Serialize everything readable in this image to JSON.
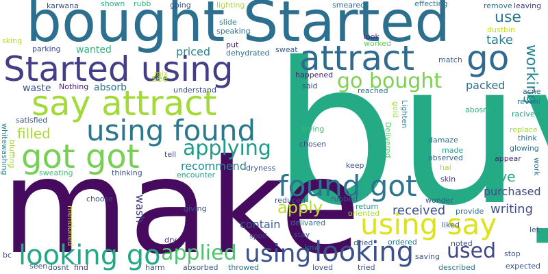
{
  "words": [
    {
      "text": "buy",
      "color": "#24aa84"
    },
    {
      "text": "make",
      "color": "#460b5e"
    },
    {
      "text": "bought Started",
      "color": "#2d6f8e"
    },
    {
      "text": "Started using",
      "color": "#433e85"
    },
    {
      "text": "say attract",
      "color": "#a2da37"
    },
    {
      "text": "attract",
      "color": "#2f6b8e"
    },
    {
      "text": "go",
      "color": "#2f6b8e"
    },
    {
      "text": "using found",
      "color": "#2a788e"
    },
    {
      "text": "got got",
      "color": "#75d054"
    },
    {
      "text": "found got",
      "color": "#2b758e"
    },
    {
      "text": "using say",
      "color": "#dde318"
    },
    {
      "text": "looking go",
      "color": "#22a884"
    },
    {
      "text": "looking",
      "color": "#3b518b"
    },
    {
      "text": "using",
      "color": "#3b518b"
    },
    {
      "text": "go bought",
      "color": "#7cd250"
    },
    {
      "text": "applying",
      "color": "#1e9b8a"
    },
    {
      "text": "applied",
      "color": "#4cc26c"
    },
    {
      "text": "used",
      "color": "#3f4788"
    },
    {
      "text": "apply",
      "color": "#bade28"
    },
    {
      "text": "filled",
      "color": "#a8db34"
    },
    {
      "text": "give",
      "color": "#27ad81"
    },
    {
      "text": "use",
      "color": "#2a768e"
    },
    {
      "text": "working",
      "color": "#26828e"
    },
    {
      "text": "take",
      "color": "#277f8e"
    },
    {
      "text": "packed",
      "color": "#2d708e"
    },
    {
      "text": "received",
      "color": "#3b518b"
    },
    {
      "text": "writing",
      "color": "#3d4e8a"
    },
    {
      "text": "purchased",
      "color": "#3e4c8a"
    },
    {
      "text": "recommend",
      "color": "#23888e"
    },
    {
      "text": "priced",
      "color": "#25848e"
    },
    {
      "text": "wanted",
      "color": "#2fb47c"
    },
    {
      "text": "absorb",
      "color": "#2c728e"
    },
    {
      "text": "waste",
      "color": "#3b528b"
    },
    {
      "text": "contain",
      "color": "#38588c"
    },
    {
      "text": "wash",
      "color": "#414487"
    },
    {
      "text": "karwana",
      "color": "#3b528b"
    },
    {
      "text": "shown",
      "color": "#26ad81"
    },
    {
      "text": "rubb",
      "color": "#2db27d"
    },
    {
      "text": "going",
      "color": "#3b528b"
    },
    {
      "text": "lighting",
      "color": "#a5db36"
    },
    {
      "text": "smeared",
      "color": "#31668e"
    },
    {
      "text": "effecting",
      "color": "#2a788e"
    },
    {
      "text": "remove",
      "color": "#2c718e"
    },
    {
      "text": "leaving",
      "color": "#453781"
    },
    {
      "text": "dustbin",
      "color": "#c8e020"
    },
    {
      "text": "slide",
      "color": "#26828e"
    },
    {
      "text": "speaking",
      "color": "#2d708e"
    },
    {
      "text": "sweat",
      "color": "#365d8d"
    },
    {
      "text": "put",
      "color": "#482576"
    },
    {
      "text": "dehydrated",
      "color": "#2c728e"
    },
    {
      "text": "look",
      "color": "#482475"
    },
    {
      "text": "worked",
      "color": "#65cb5e"
    },
    {
      "text": "sking",
      "color": "#b5de2b"
    },
    {
      "text": "parking",
      "color": "#3e4989"
    },
    {
      "text": "match",
      "color": "#375b8d"
    },
    {
      "text": "see",
      "color": "#a0da39"
    },
    {
      "text": "mix",
      "color": "#c2df23"
    },
    {
      "text": "happened",
      "color": "#482173"
    },
    {
      "text": "said",
      "color": "#3e4989"
    },
    {
      "text": "reached",
      "color": "#2c728e"
    },
    {
      "text": "Nothing",
      "color": "#481a6c"
    },
    {
      "text": "understand",
      "color": "#3c508b"
    },
    {
      "text": "acne",
      "color": "#31688e"
    },
    {
      "text": "reveal",
      "color": "#2a788e"
    },
    {
      "text": "racived",
      "color": "#1f9e89"
    },
    {
      "text": "abosrb",
      "color": "#2fb47c"
    },
    {
      "text": "satisfied",
      "color": "#39568c"
    },
    {
      "text": "whitewashing",
      "color": "#26828e"
    },
    {
      "text": "bluffing",
      "color": "#a8db34"
    },
    {
      "text": "gold",
      "color": "#a2da37"
    },
    {
      "text": "Lighten",
      "color": "#24878e"
    },
    {
      "text": "trying",
      "color": "#3fbc73"
    },
    {
      "text": "replace",
      "color": "#a0da39"
    },
    {
      "text": "think",
      "color": "#2c728e"
    },
    {
      "text": "glowing",
      "color": "#2c728e"
    },
    {
      "text": "Delivered",
      "color": "#54c568"
    },
    {
      "text": "damaze",
      "color": "#2c728e"
    },
    {
      "text": "chosen",
      "color": "#3b528b"
    },
    {
      "text": "made",
      "color": "#1f9e89"
    },
    {
      "text": "observed",
      "color": "#31688e"
    },
    {
      "text": "appear",
      "color": "#482475"
    },
    {
      "text": "hai",
      "color": "#a8db34"
    },
    {
      "text": "tell",
      "color": "#3b528b"
    },
    {
      "text": "thinking",
      "color": "#3b528b"
    },
    {
      "text": "sweating",
      "color": "#3fbc73"
    },
    {
      "text": "encounter",
      "color": "#1f9e89"
    },
    {
      "text": "dryness",
      "color": "#3b528b"
    },
    {
      "text": "keep",
      "color": "#3b528b"
    },
    {
      "text": "work",
      "color": "#2c728e"
    },
    {
      "text": "skin",
      "color": "#472d7b"
    },
    {
      "text": "choose",
      "color": "#3b528b"
    },
    {
      "text": "giving",
      "color": "#3b528b"
    },
    {
      "text": "reduced",
      "color": "#3b528b"
    },
    {
      "text": "rubbed",
      "color": "#3b528b"
    },
    {
      "text": "wonder",
      "color": "#3b528b"
    },
    {
      "text": "return",
      "color": "#1f9e89"
    },
    {
      "text": "oriented",
      "color": "#a0da39"
    },
    {
      "text": "provide",
      "color": "#2c728e"
    },
    {
      "text": "mentioned",
      "color": "#c2df23"
    },
    {
      "text": "delivared",
      "color": "#2c728e"
    },
    {
      "text": "spoil",
      "color": "#3e4989"
    },
    {
      "text": "stay",
      "color": "#3b528b"
    },
    {
      "text": "liked",
      "color": "#3b528b"
    },
    {
      "text": "let",
      "color": "#3b528b"
    },
    {
      "text": "dry",
      "color": "#472d7b"
    },
    {
      "text": "knw",
      "color": "#2c728e"
    },
    {
      "text": "dried",
      "color": "#3b528b"
    },
    {
      "text": "ordered",
      "color": "#2c728e"
    },
    {
      "text": "noted",
      "color": "#3b528b"
    },
    {
      "text": "stop",
      "color": "#3b528b"
    },
    {
      "text": "bc",
      "color": "#3b528b"
    },
    {
      "text": "seen",
      "color": "#3b528b"
    },
    {
      "text": "dosnt",
      "color": "#3b528b"
    },
    {
      "text": "find",
      "color": "#472d7b"
    },
    {
      "text": "harm",
      "color": "#3b528b"
    },
    {
      "text": "absorbed",
      "color": "#3b528b"
    },
    {
      "text": "throwed",
      "color": "#2c728e"
    },
    {
      "text": "loved",
      "color": "#3b528b"
    },
    {
      "text": "tried",
      "color": "#3b528b"
    },
    {
      "text": "saving",
      "color": "#3b528b"
    },
    {
      "text": "described",
      "color": "#2c728e"
    },
    {
      "text": "expected",
      "color": "#3b528b"
    }
  ]
}
